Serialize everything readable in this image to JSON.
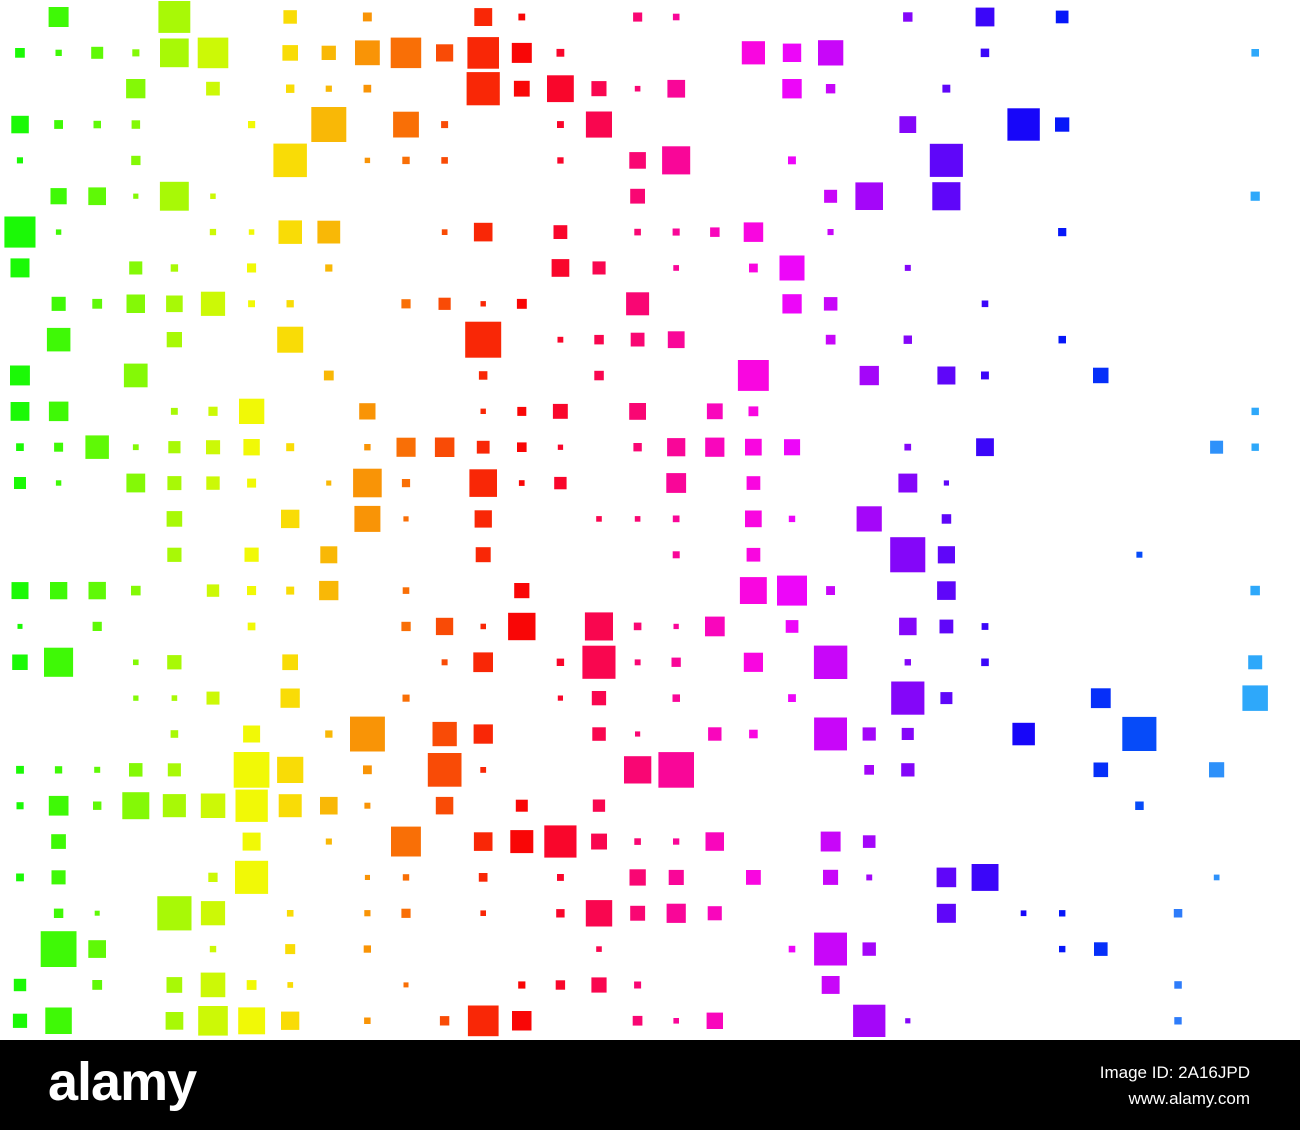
{
  "watermark": {
    "brand": "alamy",
    "image_id": "Image ID: 2A16JPD",
    "url": "www.alamy.com"
  }
}
